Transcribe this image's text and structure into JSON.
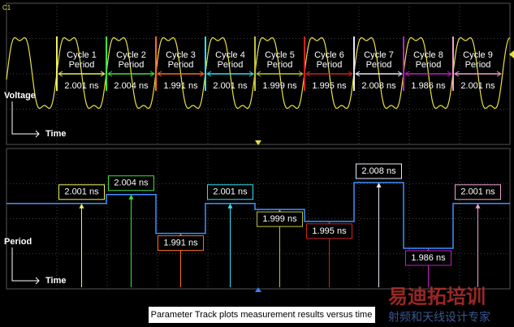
{
  "channel": "C1",
  "top_panel": {
    "y_label": "Voltage",
    "x_label": "Time"
  },
  "bottom_panel": {
    "y_label": "Period",
    "x_label": "Time"
  },
  "cycles": [
    {
      "label": "Cycle 1",
      "sub": "Period",
      "value": 2.001,
      "value_label": "2.001 ns",
      "color": "#f0f060"
    },
    {
      "label": "Cycle 2",
      "sub": "Period",
      "value": 2.004,
      "value_label": "2.004 ns",
      "color": "#40e040"
    },
    {
      "label": "Cycle 3",
      "sub": "Period",
      "value": 1.991,
      "value_label": "1.991 ns",
      "color": "#ff6a20"
    },
    {
      "label": "Cycle 4",
      "sub": "Period",
      "value": 2.001,
      "value_label": "2.001 ns",
      "color": "#30e0f0"
    },
    {
      "label": "Cycle 5",
      "sub": "Period",
      "value": 1.999,
      "value_label": "1.999 ns",
      "color": "#c0c040"
    },
    {
      "label": "Cycle 6",
      "sub": "Period",
      "value": 1.995,
      "value_label": "1.995 ns",
      "color": "#d02020"
    },
    {
      "label": "Cycle 7",
      "sub": "Period",
      "value": 2.008,
      "value_label": "2.008 ns",
      "color": "#e8e8f8"
    },
    {
      "label": "Cycle 8",
      "sub": "Period",
      "value": 1.986,
      "value_label": "1.986 ns",
      "color": "#c020c0"
    },
    {
      "label": "Cycle 9",
      "sub": "Period",
      "value": 2.001,
      "value_label": "2.001 ns",
      "color": "#f0a0d0"
    }
  ],
  "caption": "Parameter Track plots measurement results versus time",
  "watermark": {
    "title": "易迪拓培训",
    "subtitle": "射频和天线设计专家"
  }
}
